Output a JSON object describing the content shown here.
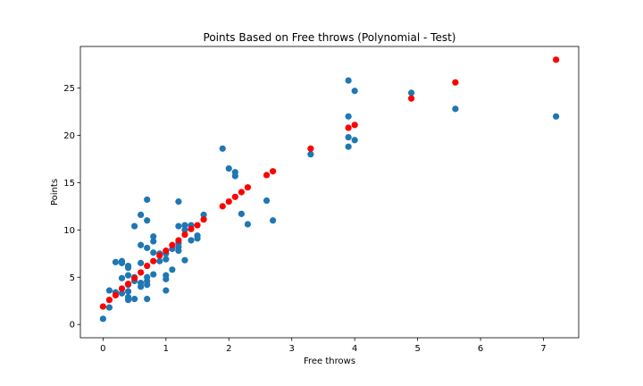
{
  "chart_data": {
    "type": "scatter",
    "title": "Points Based on Free throws (Polynomial - Test)",
    "xlabel": "Free throws",
    "ylabel": "Points",
    "xlim": [
      -0.36,
      7.56
    ],
    "ylim": [
      -1.4,
      29.4
    ],
    "xticks": [
      0,
      1,
      2,
      3,
      4,
      5,
      6,
      7
    ],
    "yticks": [
      0,
      5,
      10,
      15,
      20,
      25
    ],
    "grid": false,
    "legend": "none",
    "series": [
      {
        "color": "#1f77b4",
        "points": [
          [
            0.0,
            0.6
          ],
          [
            0.1,
            1.8
          ],
          [
            0.1,
            3.6
          ],
          [
            0.2,
            3.4
          ],
          [
            0.2,
            6.6
          ],
          [
            0.3,
            6.7
          ],
          [
            0.3,
            6.5
          ],
          [
            0.3,
            4.9
          ],
          [
            0.3,
            3.3
          ],
          [
            0.4,
            2.6
          ],
          [
            0.4,
            2.9
          ],
          [
            0.4,
            3.5
          ],
          [
            0.4,
            4.2
          ],
          [
            0.4,
            5.2
          ],
          [
            0.4,
            6.0
          ],
          [
            0.4,
            6.2
          ],
          [
            0.5,
            5.0
          ],
          [
            0.5,
            4.6
          ],
          [
            0.5,
            2.7
          ],
          [
            0.5,
            10.4
          ],
          [
            0.6,
            11.6
          ],
          [
            0.6,
            8.4
          ],
          [
            0.6,
            6.5
          ],
          [
            0.6,
            4.4
          ],
          [
            0.6,
            4.0
          ],
          [
            0.7,
            13.2
          ],
          [
            0.7,
            11.0
          ],
          [
            0.7,
            8.1
          ],
          [
            0.7,
            5.0
          ],
          [
            0.7,
            4.6
          ],
          [
            0.7,
            4.2
          ],
          [
            0.7,
            2.7
          ],
          [
            0.8,
            9.3
          ],
          [
            0.8,
            8.8
          ],
          [
            0.8,
            7.6
          ],
          [
            0.8,
            5.3
          ],
          [
            0.9,
            7.5
          ],
          [
            0.9,
            6.7
          ],
          [
            1.0,
            7.5
          ],
          [
            1.0,
            6.9
          ],
          [
            1.0,
            5.2
          ],
          [
            1.0,
            4.8
          ],
          [
            1.0,
            3.6
          ],
          [
            1.1,
            8.0
          ],
          [
            1.1,
            5.8
          ],
          [
            1.2,
            13.0
          ],
          [
            1.2,
            10.4
          ],
          [
            1.2,
            8.6
          ],
          [
            1.2,
            8.2
          ],
          [
            1.2,
            7.8
          ],
          [
            1.3,
            10.5
          ],
          [
            1.3,
            10.0
          ],
          [
            1.3,
            6.8
          ],
          [
            1.4,
            10.5
          ],
          [
            1.4,
            8.9
          ],
          [
            1.5,
            9.4
          ],
          [
            1.5,
            9.1
          ],
          [
            1.6,
            11.6
          ],
          [
            1.9,
            18.6
          ],
          [
            2.0,
            16.5
          ],
          [
            2.1,
            16.1
          ],
          [
            2.1,
            15.7
          ],
          [
            2.2,
            11.7
          ],
          [
            2.3,
            10.6
          ],
          [
            2.6,
            13.1
          ],
          [
            2.7,
            11.0
          ],
          [
            3.3,
            18.0
          ],
          [
            3.9,
            25.8
          ],
          [
            3.9,
            22.0
          ],
          [
            3.9,
            19.8
          ],
          [
            3.9,
            18.8
          ],
          [
            4.0,
            24.7
          ],
          [
            4.0,
            19.5
          ],
          [
            4.9,
            24.5
          ],
          [
            5.6,
            22.8
          ],
          [
            7.2,
            22.0
          ]
        ]
      },
      {
        "color": "#ff0000",
        "points": [
          [
            0.0,
            1.9
          ],
          [
            0.1,
            2.6
          ],
          [
            0.2,
            3.1
          ],
          [
            0.3,
            3.8
          ],
          [
            0.4,
            4.3
          ],
          [
            0.5,
            4.9
          ],
          [
            0.6,
            5.5
          ],
          [
            0.7,
            6.2
          ],
          [
            0.8,
            6.7
          ],
          [
            0.9,
            7.3
          ],
          [
            1.0,
            7.8
          ],
          [
            1.1,
            8.4
          ],
          [
            1.2,
            8.9
          ],
          [
            1.3,
            9.5
          ],
          [
            1.4,
            10.1
          ],
          [
            1.5,
            10.5
          ],
          [
            1.6,
            11.1
          ],
          [
            1.9,
            12.5
          ],
          [
            2.0,
            13.0
          ],
          [
            2.1,
            13.5
          ],
          [
            2.2,
            14.0
          ],
          [
            2.3,
            14.5
          ],
          [
            2.6,
            15.8
          ],
          [
            2.7,
            16.2
          ],
          [
            3.3,
            18.6
          ],
          [
            3.9,
            20.8
          ],
          [
            4.0,
            21.1
          ],
          [
            4.9,
            23.9
          ],
          [
            5.6,
            25.6
          ],
          [
            7.2,
            28.0
          ]
        ]
      }
    ]
  }
}
